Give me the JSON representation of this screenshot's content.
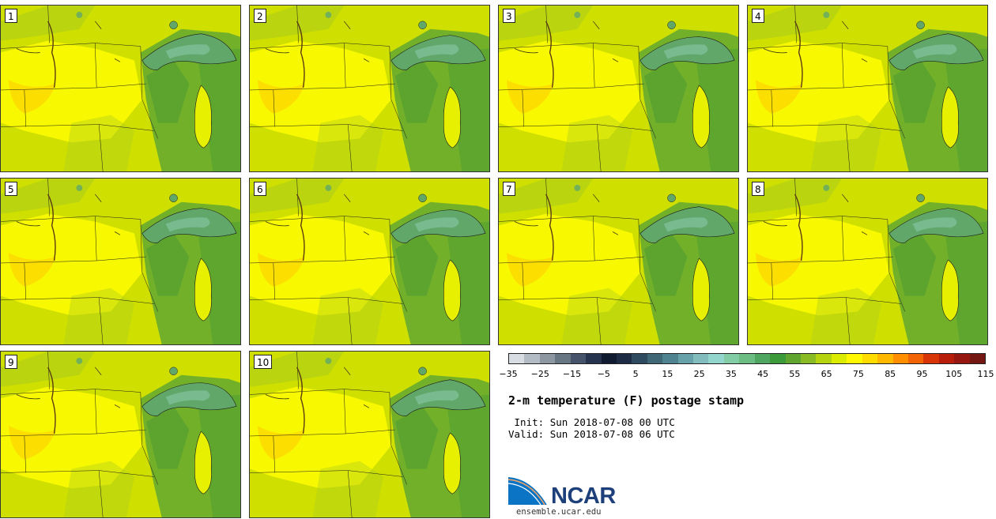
{
  "title": "2-m temperature (F) postage stamp",
  "init_label": " Init:",
  "init_value": "Sun 2018-07-08 00 UTC",
  "valid_label": "Valid:",
  "valid_value": "Sun 2018-07-08 06 UTC",
  "footer_url": "ensemble.ucar.edu",
  "logo_text": "NCAR",
  "members": [
    "1",
    "2",
    "3",
    "4",
    "5",
    "6",
    "7",
    "8",
    "9",
    "10"
  ],
  "colorbar": {
    "min": -35,
    "max": 120,
    "tick_labels": [
      "−35",
      "−25",
      "−15",
      "−5",
      "5",
      "15",
      "25",
      "35",
      "45",
      "55",
      "65",
      "75",
      "85",
      "95",
      "105",
      "115"
    ],
    "colors": [
      "#d7dde3",
      "#b3bcc4",
      "#8c97a1",
      "#687583",
      "#46536a",
      "#263450",
      "#101b31",
      "#1d2c44",
      "#2f4b5f",
      "#3f6776",
      "#4f8390",
      "#67a1a9",
      "#82bcbd",
      "#92d6cd",
      "#82cda5",
      "#6bbd83",
      "#4fa660",
      "#3d9a3b",
      "#5fa52f",
      "#89bb25",
      "#b5d30e",
      "#dcec00",
      "#fff800",
      "#ffdc00",
      "#ffb800",
      "#ff8f00",
      "#f26405",
      "#d83608",
      "#b81c0b",
      "#961710",
      "#741611"
    ]
  },
  "map_colors": {
    "base": "#cfe000",
    "warm": "#fffb00",
    "hot": "#ffc400",
    "cool": "#a9cc1e",
    "east": "#72b02a",
    "forest": "#54a032",
    "lake": "#62a76a",
    "lake_deep": "#7fbf99",
    "lake_michigan": "#e6f000",
    "border": "#1a1a1a"
  }
}
